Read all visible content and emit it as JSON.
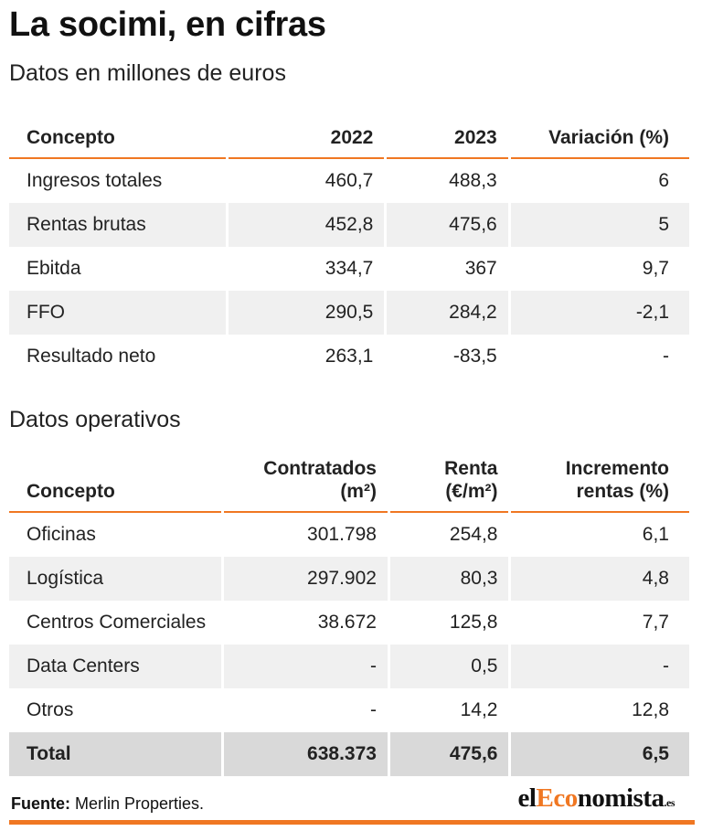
{
  "header": {
    "title": "La socimi, en cifras",
    "subtitle": "Datos en millones de euros"
  },
  "financial_table": {
    "headers": [
      "Concepto",
      "2022",
      "2023",
      "Variación (%)"
    ],
    "rows": [
      [
        "Ingresos totales",
        "460,7",
        "488,3",
        "6"
      ],
      [
        "Rentas brutas",
        "452,8",
        "475,6",
        "5"
      ],
      [
        "Ebitda",
        "334,7",
        "367",
        "9,7"
      ],
      [
        "FFO",
        "290,5",
        "284,2",
        "-2,1"
      ],
      [
        "Resultado neto",
        "263,1",
        "-83,5",
        "-"
      ]
    ]
  },
  "operating": {
    "section_title": "Datos operativos",
    "headers": {
      "concepto": "Concepto",
      "contratados_l1": "Contratados",
      "contratados_l2": "(m²)",
      "renta_l1": "Renta",
      "renta_l2": "(€/m²)",
      "incremento_l1": "Incremento",
      "incremento_l2": "rentas (%)"
    },
    "rows": [
      [
        "Oficinas",
        "301.798",
        "254,8",
        "6,1"
      ],
      [
        "Logística",
        "297.902",
        "80,3",
        "4,8"
      ],
      [
        "Centros Comerciales",
        "38.672",
        "125,8",
        "7,7"
      ],
      [
        "Data Centers",
        "-",
        "0,5",
        "-"
      ],
      [
        "Otros",
        "-",
        "14,2",
        "12,8"
      ]
    ],
    "total": [
      "Total",
      "638.373",
      "475,6",
      "6,5"
    ]
  },
  "footer": {
    "source_label": "Fuente:",
    "source_value": "Merlin Properties.",
    "logo_prefix": "el",
    "logo_highlight": "Eco",
    "logo_suffix": "nomista",
    "logo_tld": ".es"
  },
  "colors": {
    "accent": "#f07722",
    "row_shade": "#f0f0f0",
    "total_shade": "#d9d9d9"
  }
}
